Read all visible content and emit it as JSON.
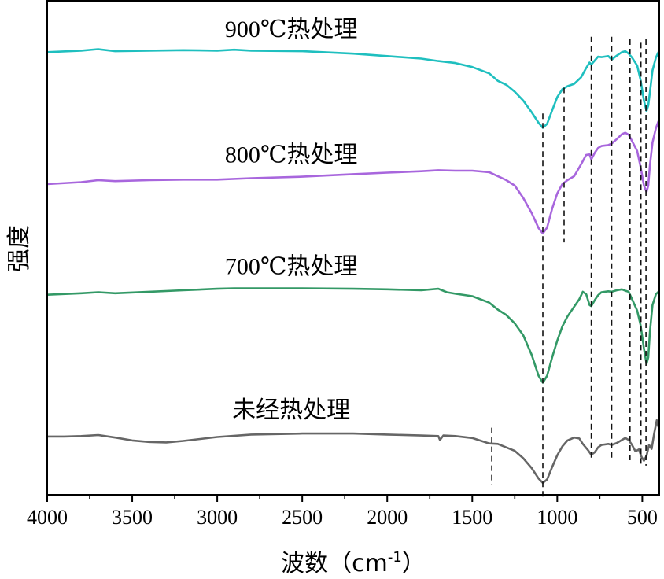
{
  "chart_data": {
    "type": "line",
    "title": "",
    "xlabel": "波数（cm-1）",
    "xlabel_parts": {
      "main": "波数（cm",
      "sup": "-1",
      "close": "）"
    },
    "ylabel": "强度",
    "xlim": [
      4000,
      400
    ],
    "x_ticks": [
      4000,
      3500,
      3000,
      2500,
      2000,
      1500,
      1000,
      500
    ],
    "x_tick_labels": [
      "4000",
      "3500",
      "3000",
      "2500",
      "2000",
      "1500",
      "1000",
      "500"
    ],
    "y_ticks_shown": false,
    "ylim": [
      0,
      100
    ],
    "series": [
      {
        "name": "900℃热处理",
        "color": "#1fbfbf",
        "points": [
          [
            4000,
            89.6
          ],
          [
            3800,
            89.9
          ],
          [
            3700,
            90.2
          ],
          [
            3600,
            89.8
          ],
          [
            3400,
            89.9
          ],
          [
            3200,
            90.0
          ],
          [
            3000,
            89.9
          ],
          [
            2900,
            90.1
          ],
          [
            2800,
            89.9
          ],
          [
            2500,
            89.8
          ],
          [
            2200,
            89.3
          ],
          [
            2000,
            88.8
          ],
          [
            1800,
            88.3
          ],
          [
            1700,
            87.8
          ],
          [
            1600,
            87.4
          ],
          [
            1500,
            86.6
          ],
          [
            1400,
            85.3
          ],
          [
            1350,
            83.8
          ],
          [
            1300,
            83.0
          ],
          [
            1250,
            81.6
          ],
          [
            1200,
            79.8
          ],
          [
            1150,
            77.4
          ],
          [
            1110,
            75.3
          ],
          [
            1085,
            74.3
          ],
          [
            1060,
            75.1
          ],
          [
            1030,
            77.8
          ],
          [
            1000,
            80.5
          ],
          [
            970,
            82.1
          ],
          [
            940,
            82.7
          ],
          [
            900,
            83.2
          ],
          [
            860,
            84.5
          ],
          [
            830,
            86.4
          ],
          [
            810,
            87.5
          ],
          [
            800,
            87.1
          ],
          [
            780,
            87.9
          ],
          [
            760,
            88.7
          ],
          [
            740,
            88.6
          ],
          [
            700,
            88.8
          ],
          [
            680,
            88.1
          ],
          [
            650,
            88.9
          ],
          [
            620,
            89.6
          ],
          [
            600,
            89.8
          ],
          [
            580,
            89.3
          ],
          [
            560,
            88.5
          ],
          [
            530,
            86.9
          ],
          [
            510,
            84.0
          ],
          [
            490,
            79.8
          ],
          [
            475,
            77.7
          ],
          [
            465,
            78.8
          ],
          [
            455,
            81.5
          ],
          [
            440,
            85.9
          ],
          [
            420,
            88.5
          ],
          [
            405,
            89.6
          ]
        ]
      },
      {
        "name": "800℃热处理",
        "color": "#a866dd",
        "points": [
          [
            4000,
            62.9
          ],
          [
            3800,
            63.3
          ],
          [
            3700,
            63.7
          ],
          [
            3600,
            63.5
          ],
          [
            3400,
            63.7
          ],
          [
            3200,
            63.8
          ],
          [
            3000,
            63.8
          ],
          [
            2800,
            64.1
          ],
          [
            2500,
            64.4
          ],
          [
            2200,
            64.9
          ],
          [
            2000,
            65.2
          ],
          [
            1800,
            65.5
          ],
          [
            1700,
            65.7
          ],
          [
            1600,
            65.6
          ],
          [
            1500,
            65.6
          ],
          [
            1400,
            65.3
          ],
          [
            1350,
            64.5
          ],
          [
            1300,
            63.7
          ],
          [
            1250,
            62.6
          ],
          [
            1200,
            60.1
          ],
          [
            1150,
            57.0
          ],
          [
            1110,
            54.0
          ],
          [
            1085,
            52.9
          ],
          [
            1060,
            54.1
          ],
          [
            1030,
            57.9
          ],
          [
            1000,
            61.0
          ],
          [
            970,
            62.9
          ],
          [
            940,
            63.7
          ],
          [
            900,
            64.5
          ],
          [
            860,
            66.9
          ],
          [
            830,
            68.8
          ],
          [
            810,
            68.9
          ],
          [
            800,
            67.9
          ],
          [
            780,
            69.2
          ],
          [
            760,
            70.2
          ],
          [
            740,
            70.6
          ],
          [
            700,
            70.8
          ],
          [
            680,
            71.1
          ],
          [
            650,
            72.0
          ],
          [
            620,
            73.0
          ],
          [
            600,
            73.3
          ],
          [
            580,
            72.9
          ],
          [
            560,
            71.6
          ],
          [
            530,
            69.6
          ],
          [
            510,
            66.4
          ],
          [
            490,
            62.6
          ],
          [
            475,
            61.3
          ],
          [
            465,
            62.6
          ],
          [
            455,
            66.7
          ],
          [
            440,
            71.3
          ],
          [
            420,
            74.2
          ],
          [
            405,
            75.6
          ]
        ]
      },
      {
        "name": "700℃热处理",
        "color": "#339966",
        "points": [
          [
            4000,
            40.5
          ],
          [
            3800,
            40.8
          ],
          [
            3700,
            41.0
          ],
          [
            3600,
            40.8
          ],
          [
            3400,
            41.1
          ],
          [
            3200,
            41.4
          ],
          [
            3000,
            41.7
          ],
          [
            2900,
            41.8
          ],
          [
            2800,
            41.8
          ],
          [
            2500,
            41.8
          ],
          [
            2200,
            41.7
          ],
          [
            2000,
            41.6
          ],
          [
            1800,
            41.4
          ],
          [
            1700,
            41.7
          ],
          [
            1650,
            41.0
          ],
          [
            1600,
            40.7
          ],
          [
            1500,
            40.2
          ],
          [
            1400,
            38.9
          ],
          [
            1350,
            37.5
          ],
          [
            1300,
            36.4
          ],
          [
            1250,
            34.7
          ],
          [
            1200,
            32.3
          ],
          [
            1150,
            28.3
          ],
          [
            1110,
            24.1
          ],
          [
            1085,
            22.7
          ],
          [
            1060,
            24.1
          ],
          [
            1030,
            27.8
          ],
          [
            1000,
            31.2
          ],
          [
            970,
            34.1
          ],
          [
            940,
            36.1
          ],
          [
            900,
            38.1
          ],
          [
            870,
            39.6
          ],
          [
            850,
            41.1
          ],
          [
            830,
            40.6
          ],
          [
            810,
            38.4
          ],
          [
            800,
            38.2
          ],
          [
            780,
            39.4
          ],
          [
            760,
            40.4
          ],
          [
            740,
            41.0
          ],
          [
            700,
            41.2
          ],
          [
            680,
            41.1
          ],
          [
            650,
            41.4
          ],
          [
            620,
            41.6
          ],
          [
            600,
            41.3
          ],
          [
            580,
            41.1
          ],
          [
            560,
            39.6
          ],
          [
            530,
            37.3
          ],
          [
            510,
            34.4
          ],
          [
            490,
            29.6
          ],
          [
            475,
            26.5
          ],
          [
            465,
            27.8
          ],
          [
            455,
            33.0
          ],
          [
            440,
            38.4
          ],
          [
            420,
            40.6
          ],
          [
            405,
            41.1
          ]
        ]
      },
      {
        "name": "未经热处理",
        "color": "#666666",
        "points": [
          [
            4000,
            11.8
          ],
          [
            3900,
            11.8
          ],
          [
            3800,
            11.9
          ],
          [
            3700,
            12.1
          ],
          [
            3600,
            11.6
          ],
          [
            3500,
            11.0
          ],
          [
            3400,
            10.7
          ],
          [
            3300,
            10.6
          ],
          [
            3200,
            10.9
          ],
          [
            3100,
            11.3
          ],
          [
            3000,
            11.7
          ],
          [
            2800,
            12.2
          ],
          [
            2500,
            12.4
          ],
          [
            2200,
            12.4
          ],
          [
            2000,
            12.2
          ],
          [
            1800,
            12.0
          ],
          [
            1700,
            11.9
          ],
          [
            1690,
            11.1
          ],
          [
            1670,
            12.0
          ],
          [
            1600,
            11.9
          ],
          [
            1500,
            11.5
          ],
          [
            1400,
            10.4
          ],
          [
            1350,
            10.3
          ],
          [
            1300,
            9.6
          ],
          [
            1250,
            8.9
          ],
          [
            1200,
            7.4
          ],
          [
            1150,
            5.4
          ],
          [
            1110,
            3.3
          ],
          [
            1085,
            2.4
          ],
          [
            1060,
            3.1
          ],
          [
            1030,
            5.6
          ],
          [
            1000,
            8.0
          ],
          [
            970,
            9.8
          ],
          [
            940,
            11.0
          ],
          [
            900,
            11.6
          ],
          [
            870,
            11.4
          ],
          [
            850,
            10.3
          ],
          [
            820,
            9.1
          ],
          [
            800,
            8.1
          ],
          [
            780,
            8.6
          ],
          [
            760,
            9.6
          ],
          [
            740,
            10.1
          ],
          [
            700,
            10.3
          ],
          [
            680,
            10.1
          ],
          [
            650,
            10.5
          ],
          [
            620,
            11.1
          ],
          [
            600,
            11.5
          ],
          [
            580,
            11.1
          ],
          [
            560,
            10.1
          ],
          [
            540,
            8.8
          ],
          [
            520,
            9.2
          ],
          [
            505,
            7.7
          ],
          [
            490,
            6.9
          ],
          [
            475,
            7.9
          ],
          [
            460,
            10.1
          ],
          [
            445,
            9.3
          ],
          [
            430,
            12.4
          ],
          [
            415,
            15.1
          ],
          [
            405,
            13.8
          ]
        ]
      }
    ],
    "reference_lines": [
      {
        "x": 1385,
        "y_from": 2.0,
        "y_to": 13.6
      },
      {
        "x": 1085,
        "y_from": -0.7,
        "y_to": 77.2
      },
      {
        "x": 960,
        "y_from": 51.1,
        "y_to": 82.4
      },
      {
        "x": 800,
        "y_from": 7.1,
        "y_to": 92.7
      },
      {
        "x": 680,
        "y_from": 7.1,
        "y_to": 92.7
      },
      {
        "x": 572,
        "y_from": 6.7,
        "y_to": 92.2
      },
      {
        "x": 508,
        "y_from": 6.2,
        "y_to": 91.5
      },
      {
        "x": 478,
        "y_from": 5.9,
        "y_to": 92.2
      }
    ]
  }
}
